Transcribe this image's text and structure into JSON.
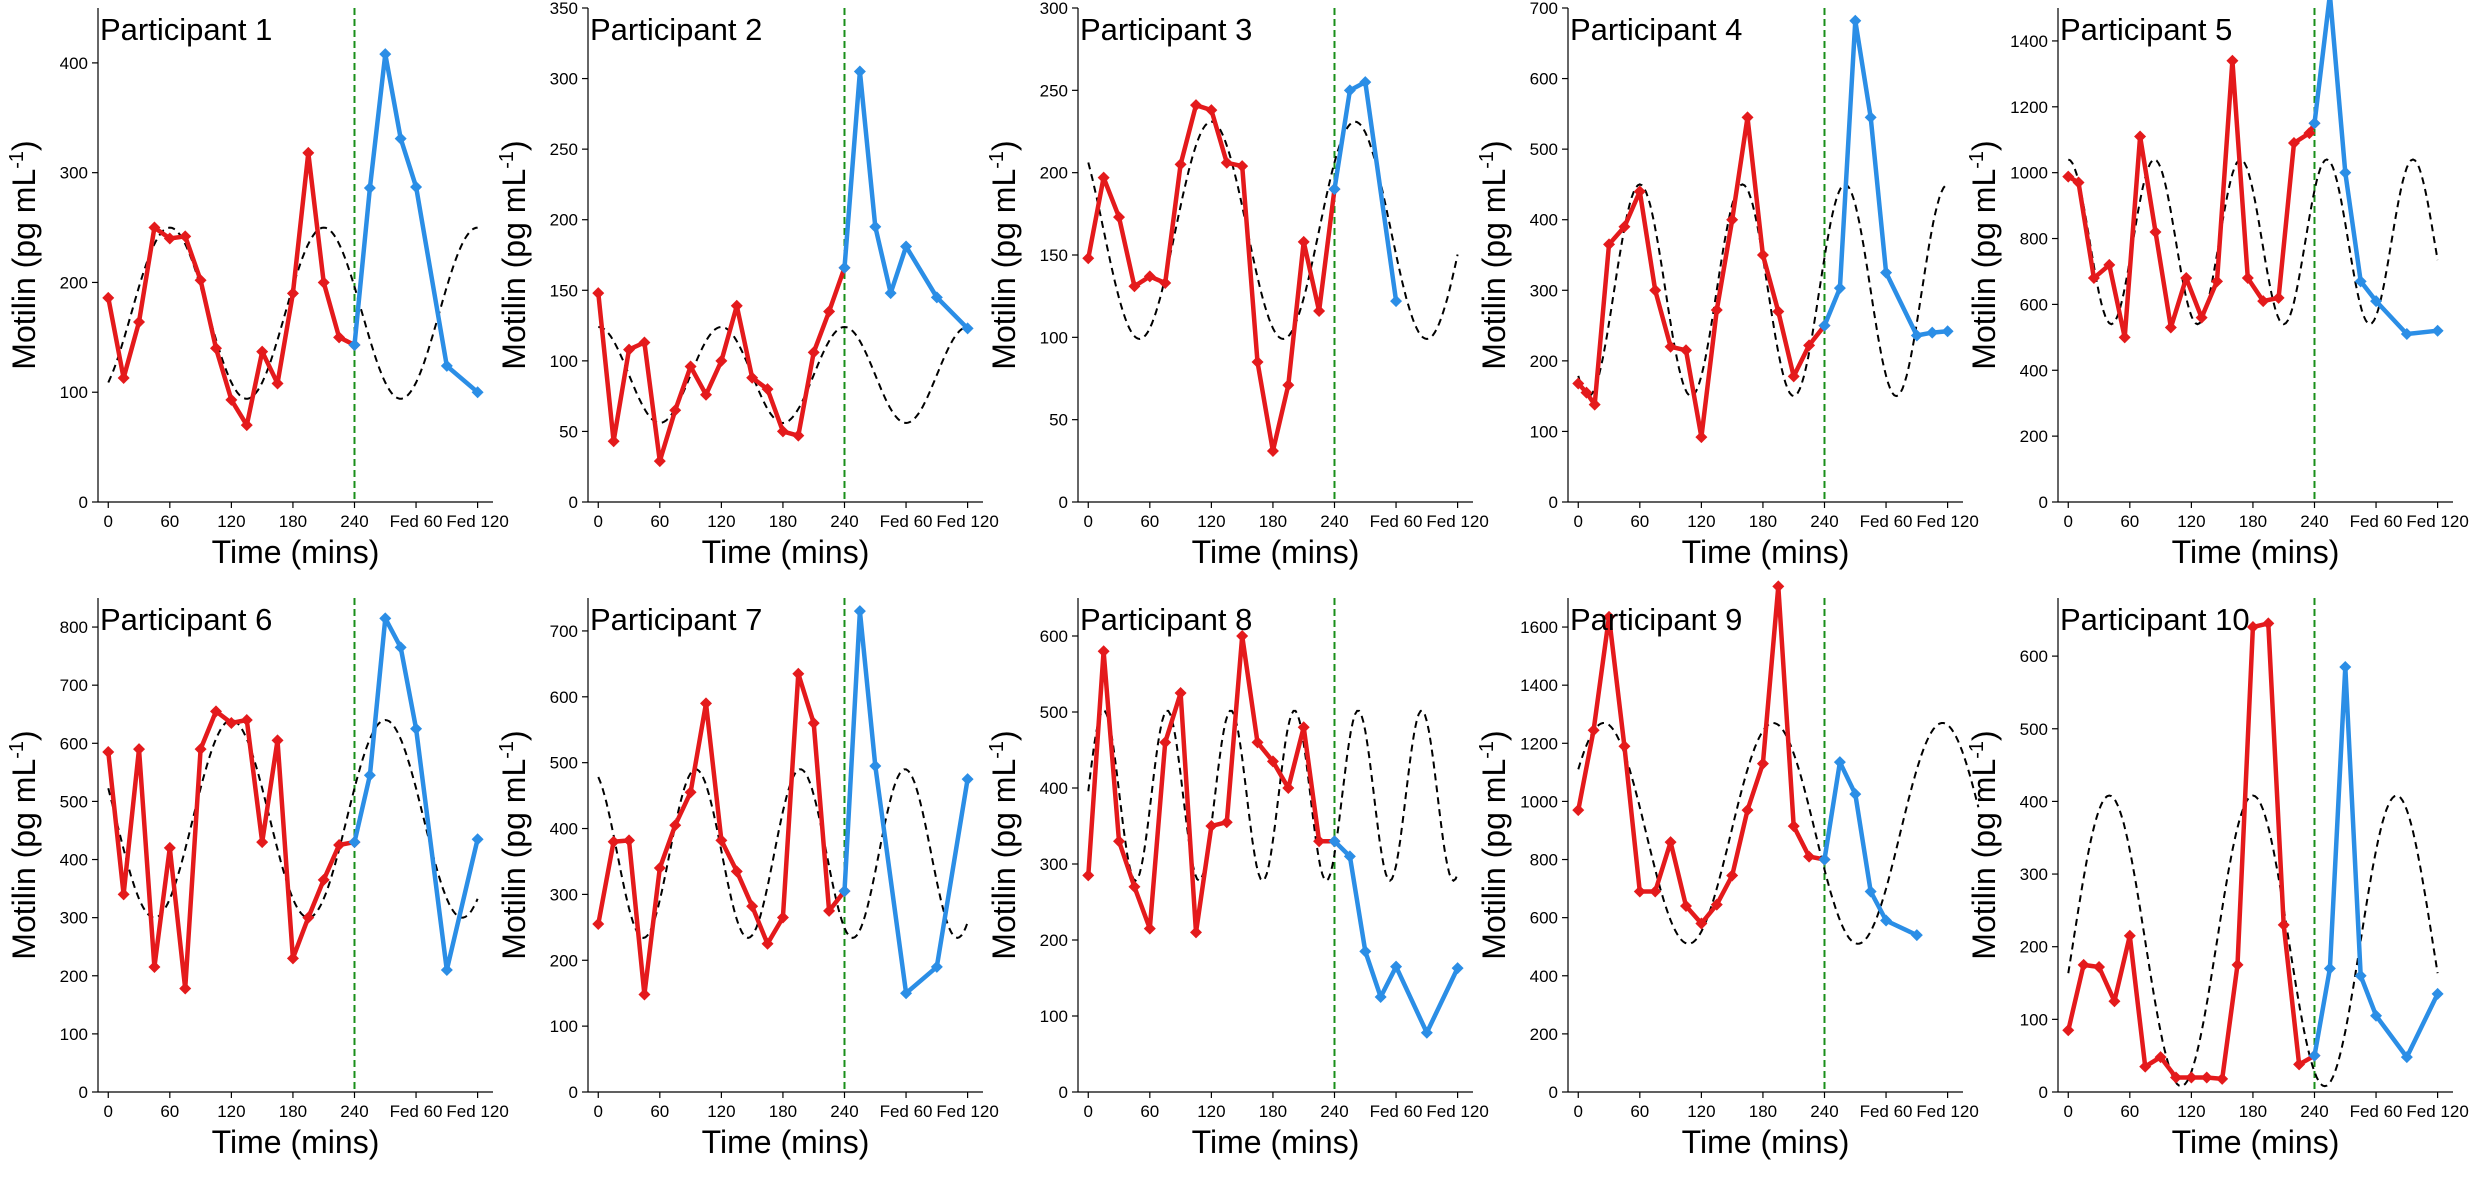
{
  "figure": {
    "xlabel": "Time (mins)",
    "ylabel_main": "Motilin (pg mL",
    "ylabel_sup": "-1",
    "ylabel_close": ")"
  },
  "colors": {
    "fasted": "#e41a1c",
    "fed": "#2b8ee6",
    "fit": "#000000",
    "meal_line": "#1a8f1a"
  },
  "chart_data": [
    {
      "type": "line",
      "title": "Participant 1",
      "ylim": [
        0,
        450
      ],
      "yticks": [
        0,
        100,
        200,
        300,
        400
      ],
      "xticks": [
        {
          "x": 0,
          "label": "0"
        },
        {
          "x": 60,
          "label": "60"
        },
        {
          "x": 120,
          "label": "120"
        },
        {
          "x": 180,
          "label": "180"
        },
        {
          "x": 240,
          "label": "240"
        },
        {
          "x": 300,
          "label": "Fed 60"
        },
        {
          "x": 360,
          "label": "Fed 120"
        }
      ],
      "meal_time": 240,
      "fit": {
        "mean": 172,
        "amp": 78,
        "period": 150,
        "peak": 60,
        "end": 360
      },
      "series": [
        {
          "name": "fasted",
          "x": [
            0,
            15,
            30,
            45,
            60,
            75,
            90,
            105,
            120,
            135,
            150,
            165,
            180,
            195,
            210,
            225,
            240
          ],
          "y": [
            186,
            113,
            164,
            250,
            240,
            242,
            202,
            140,
            93,
            70,
            137,
            108,
            190,
            318,
            200,
            150,
            143
          ]
        },
        {
          "name": "fed",
          "x": [
            240,
            255,
            270,
            285,
            300,
            330,
            360
          ],
          "y": [
            143,
            286,
            408,
            331,
            287,
            124,
            100
          ]
        }
      ]
    },
    {
      "type": "line",
      "title": "Participant 2",
      "ylim": [
        0,
        350
      ],
      "yticks": [
        0,
        50,
        100,
        150,
        200,
        250,
        300,
        350
      ],
      "xticks": [
        {
          "x": 0,
          "label": "0"
        },
        {
          "x": 60,
          "label": "60"
        },
        {
          "x": 120,
          "label": "120"
        },
        {
          "x": 180,
          "label": "180"
        },
        {
          "x": 240,
          "label": "240"
        },
        {
          "x": 300,
          "label": "Fed 60"
        },
        {
          "x": 360,
          "label": "Fed 120"
        }
      ],
      "meal_time": 240,
      "fit": {
        "mean": 90,
        "amp": 34,
        "period": 120,
        "peak": 0,
        "end": 360
      },
      "series": [
        {
          "name": "fasted",
          "x": [
            0,
            15,
            30,
            45,
            60,
            75,
            90,
            105,
            120,
            135,
            150,
            165,
            180,
            195,
            210,
            225,
            240
          ],
          "y": [
            148,
            43,
            108,
            113,
            29,
            65,
            96,
            76,
            100,
            139,
            88,
            80,
            50,
            47,
            106,
            135,
            166
          ]
        },
        {
          "name": "fed",
          "x": [
            240,
            255,
            270,
            285,
            300,
            330,
            360
          ],
          "y": [
            166,
            305,
            195,
            148,
            181,
            145,
            123
          ]
        }
      ]
    },
    {
      "type": "line",
      "title": "Participant 3",
      "ylim": [
        0,
        300
      ],
      "yticks": [
        0,
        50,
        100,
        150,
        200,
        250,
        300
      ],
      "xticks": [
        {
          "x": 0,
          "label": "0"
        },
        {
          "x": 60,
          "label": "60"
        },
        {
          "x": 120,
          "label": "120"
        },
        {
          "x": 180,
          "label": "180"
        },
        {
          "x": 240,
          "label": "240"
        },
        {
          "x": 300,
          "label": "Fed 60"
        },
        {
          "x": 360,
          "label": "Fed 120"
        }
      ],
      "meal_time": 240,
      "fit": {
        "mean": 165,
        "amp": 66,
        "period": 140,
        "peak": 120,
        "end": 360
      },
      "series": [
        {
          "name": "fasted",
          "x": [
            0,
            15,
            30,
            45,
            60,
            75,
            90,
            105,
            120,
            135,
            150,
            165,
            180,
            195,
            210,
            225,
            240
          ],
          "y": [
            148,
            197,
            173,
            131,
            137,
            133,
            205,
            241,
            238,
            206,
            204,
            85,
            31,
            71,
            158,
            116,
            190
          ]
        },
        {
          "name": "fed",
          "x": [
            240,
            255,
            270,
            300
          ],
          "y": [
            190,
            250,
            255,
            122
          ]
        }
      ]
    },
    {
      "type": "line",
      "title": "Participant 4",
      "ylim": [
        0,
        700
      ],
      "yticks": [
        0,
        100,
        200,
        300,
        400,
        500,
        600,
        700
      ],
      "xticks": [
        {
          "x": 0,
          "label": "0"
        },
        {
          "x": 60,
          "label": "60"
        },
        {
          "x": 120,
          "label": "120"
        },
        {
          "x": 180,
          "label": "180"
        },
        {
          "x": 240,
          "label": "240"
        },
        {
          "x": 300,
          "label": "Fed 60"
        },
        {
          "x": 360,
          "label": "Fed 120"
        }
      ],
      "meal_time": 240,
      "fit": {
        "mean": 300,
        "amp": 150,
        "period": 100,
        "peak": 60,
        "end": 360
      },
      "series": [
        {
          "name": "fasted",
          "x": [
            0,
            8,
            16,
            30,
            45,
            60,
            75,
            90,
            105,
            120,
            135,
            150,
            165,
            180,
            195,
            210,
            225,
            240
          ],
          "y": [
            168,
            155,
            138,
            365,
            390,
            440,
            300,
            220,
            215,
            92,
            272,
            400,
            545,
            350,
            270,
            178,
            222,
            250
          ]
        },
        {
          "name": "fed",
          "x": [
            240,
            255,
            270,
            285,
            300,
            330,
            345,
            360
          ],
          "y": [
            250,
            303,
            682,
            545,
            325,
            236,
            240,
            242
          ]
        }
      ]
    },
    {
      "type": "line",
      "title": "Participant 5",
      "ylim": [
        0,
        1500
      ],
      "yticks": [
        0,
        200,
        400,
        600,
        800,
        1000,
        1200,
        1400
      ],
      "xticks": [
        {
          "x": 0,
          "label": "0"
        },
        {
          "x": 60,
          "label": "60"
        },
        {
          "x": 120,
          "label": "120"
        },
        {
          "x": 180,
          "label": "180"
        },
        {
          "x": 240,
          "label": "240"
        },
        {
          "x": 300,
          "label": "Fed 60"
        },
        {
          "x": 360,
          "label": "Fed 120"
        }
      ],
      "meal_time": 240,
      "fit": {
        "mean": 790,
        "amp": 250,
        "period": 84,
        "peak": 0,
        "end": 360
      },
      "series": [
        {
          "name": "fasted",
          "x": [
            0,
            10,
            25,
            40,
            55,
            70,
            85,
            100,
            115,
            130,
            145,
            160,
            175,
            190,
            205,
            220,
            235,
            240
          ],
          "y": [
            988,
            970,
            680,
            720,
            500,
            1110,
            820,
            530,
            680,
            560,
            670,
            1340,
            680,
            610,
            620,
            1090,
            1120,
            1150
          ]
        },
        {
          "name": "fed",
          "x": [
            240,
            255,
            270,
            285,
            300,
            330,
            360
          ],
          "y": [
            1150,
            1540,
            1000,
            670,
            610,
            510,
            520
          ]
        }
      ]
    },
    {
      "type": "line",
      "title": "Participant 6",
      "ylim": [
        0,
        850
      ],
      "yticks": [
        0,
        100,
        200,
        300,
        400,
        500,
        600,
        700,
        800
      ],
      "xticks": [
        {
          "x": 0,
          "label": "0"
        },
        {
          "x": 60,
          "label": "60"
        },
        {
          "x": 120,
          "label": "120"
        },
        {
          "x": 180,
          "label": "180"
        },
        {
          "x": 240,
          "label": "240"
        },
        {
          "x": 300,
          "label": "Fed 60"
        },
        {
          "x": 360,
          "label": "Fed 120"
        }
      ],
      "meal_time": 240,
      "fit": {
        "mean": 470,
        "amp": 170,
        "period": 150,
        "peak": 120,
        "end": 360
      },
      "series": [
        {
          "name": "fasted",
          "x": [
            0,
            15,
            30,
            45,
            60,
            75,
            90,
            105,
            120,
            135,
            150,
            165,
            180,
            195,
            210,
            225,
            240
          ],
          "y": [
            585,
            340,
            590,
            215,
            420,
            178,
            590,
            655,
            635,
            640,
            430,
            605,
            230,
            300,
            365,
            425,
            430
          ]
        },
        {
          "name": "fed",
          "x": [
            240,
            255,
            270,
            285,
            300,
            330,
            360
          ],
          "y": [
            430,
            545,
            815,
            765,
            625,
            210,
            435
          ]
        }
      ]
    },
    {
      "type": "line",
      "title": "Participant 7",
      "ylim": [
        0,
        750
      ],
      "yticks": [
        0,
        100,
        200,
        300,
        400,
        500,
        600,
        700
      ],
      "xticks": [
        {
          "x": 0,
          "label": "0"
        },
        {
          "x": 60,
          "label": "60"
        },
        {
          "x": 120,
          "label": "120"
        },
        {
          "x": 180,
          "label": "180"
        },
        {
          "x": 240,
          "label": "240"
        },
        {
          "x": 300,
          "label": "Fed 60"
        },
        {
          "x": 360,
          "label": "Fed 120"
        }
      ],
      "meal_time": 240,
      "fit": {
        "mean": 362,
        "amp": 128,
        "period": 102,
        "peak": 95,
        "end": 360
      },
      "series": [
        {
          "name": "fasted",
          "x": [
            0,
            15,
            30,
            45,
            60,
            75,
            90,
            105,
            120,
            135,
            150,
            165,
            180,
            195,
            210,
            225,
            240
          ],
          "y": [
            255,
            380,
            382,
            148,
            340,
            405,
            455,
            590,
            382,
            335,
            282,
            225,
            265,
            635,
            560,
            275,
            305
          ]
        },
        {
          "name": "fed",
          "x": [
            240,
            255,
            270,
            300,
            330,
            360
          ],
          "y": [
            305,
            730,
            495,
            150,
            190,
            475
          ]
        }
      ]
    },
    {
      "type": "line",
      "title": "Participant 8",
      "ylim": [
        0,
        650
      ],
      "yticks": [
        0,
        100,
        200,
        300,
        400,
        500,
        600
      ],
      "xticks": [
        {
          "x": 0,
          "label": "0"
        },
        {
          "x": 60,
          "label": "60"
        },
        {
          "x": 120,
          "label": "120"
        },
        {
          "x": 180,
          "label": "180"
        },
        {
          "x": 240,
          "label": "240"
        },
        {
          "x": 300,
          "label": "Fed 60"
        },
        {
          "x": 360,
          "label": "Fed 120"
        }
      ],
      "meal_time": 240,
      "fit": {
        "mean": 390,
        "amp": 112,
        "period": 62,
        "peak": 15,
        "end": 360
      },
      "series": [
        {
          "name": "fasted",
          "x": [
            0,
            15,
            30,
            45,
            60,
            75,
            90,
            105,
            120,
            135,
            150,
            165,
            180,
            195,
            210,
            225,
            240
          ],
          "y": [
            285,
            580,
            330,
            270,
            215,
            460,
            525,
            210,
            350,
            355,
            600,
            460,
            435,
            400,
            480,
            330,
            330
          ]
        },
        {
          "name": "fed",
          "x": [
            240,
            255,
            270,
            285,
            300,
            330,
            360
          ],
          "y": [
            330,
            310,
            185,
            125,
            165,
            78,
            163
          ]
        }
      ]
    },
    {
      "type": "line",
      "title": "Participant 9",
      "ylim": [
        0,
        1700
      ],
      "yticks": [
        0,
        200,
        400,
        600,
        800,
        1000,
        1200,
        1400,
        1600
      ],
      "xticks": [
        {
          "x": 0,
          "label": "0"
        },
        {
          "x": 60,
          "label": "60"
        },
        {
          "x": 120,
          "label": "120"
        },
        {
          "x": 180,
          "label": "180"
        },
        {
          "x": 240,
          "label": "240"
        },
        {
          "x": 300,
          "label": "Fed 60"
        },
        {
          "x": 360,
          "label": "Fed 120"
        }
      ],
      "meal_time": 240,
      "fit": {
        "mean": 890,
        "amp": 380,
        "period": 165,
        "peak": 25,
        "end": 390
      },
      "series": [
        {
          "name": "fasted",
          "x": [
            0,
            15,
            30,
            45,
            60,
            75,
            90,
            105,
            120,
            135,
            150,
            165,
            180,
            195,
            210,
            225,
            240
          ],
          "y": [
            970,
            1245,
            1635,
            1190,
            690,
            690,
            860,
            640,
            580,
            645,
            745,
            970,
            1130,
            1740,
            915,
            810,
            800
          ]
        },
        {
          "name": "fed",
          "x": [
            240,
            255,
            270,
            285,
            300,
            330
          ],
          "y": [
            800,
            1135,
            1025,
            690,
            590,
            540
          ]
        }
      ]
    },
    {
      "type": "line",
      "title": "Participant 10",
      "ylim": [
        0,
        680
      ],
      "yticks": [
        0,
        100,
        200,
        300,
        400,
        500,
        600
      ],
      "xticks": [
        {
          "x": 0,
          "label": "0"
        },
        {
          "x": 60,
          "label": "60"
        },
        {
          "x": 120,
          "label": "120"
        },
        {
          "x": 180,
          "label": "180"
        },
        {
          "x": 240,
          "label": "240"
        },
        {
          "x": 300,
          "label": "Fed 60"
        },
        {
          "x": 360,
          "label": "Fed 120"
        }
      ],
      "meal_time": 240,
      "fit": {
        "mean": 208,
        "amp": 200,
        "period": 140,
        "peak": 40,
        "end": 360
      },
      "series": [
        {
          "name": "fasted",
          "x": [
            0,
            15,
            30,
            45,
            60,
            75,
            90,
            105,
            120,
            135,
            150,
            165,
            180,
            195,
            210,
            225,
            240
          ],
          "y": [
            85,
            175,
            172,
            125,
            215,
            35,
            48,
            20,
            20,
            20,
            18,
            175,
            640,
            645,
            230,
            38,
            50
          ]
        },
        {
          "name": "fed",
          "x": [
            240,
            255,
            270,
            285,
            300,
            330,
            360
          ],
          "y": [
            50,
            170,
            585,
            160,
            105,
            48,
            135
          ]
        }
      ]
    }
  ]
}
